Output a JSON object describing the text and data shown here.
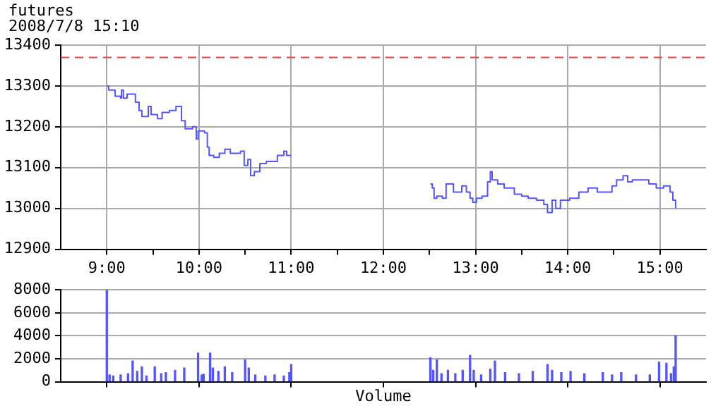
{
  "chart_data": [
    {
      "type": "step",
      "title": "futures",
      "subtitle": "2008/7/8 15:10",
      "xlim": [
        8.5,
        15.5
      ],
      "xticks": [
        {
          "value": 9,
          "label": "9:00"
        },
        {
          "value": 9.5,
          "label": null
        },
        {
          "value": 10,
          "label": "10:00"
        },
        {
          "value": 10.5,
          "label": null
        },
        {
          "value": 11,
          "label": "11:00"
        },
        {
          "value": 11.5,
          "label": null
        },
        {
          "value": 12,
          "label": "12:00"
        },
        {
          "value": 12.5,
          "label": null
        },
        {
          "value": 13,
          "label": "13:00"
        },
        {
          "value": 13.5,
          "label": null
        },
        {
          "value": 14,
          "label": "14:00"
        },
        {
          "value": 14.5,
          "label": null
        },
        {
          "value": 15,
          "label": "15:00"
        }
      ],
      "ylim": [
        12900,
        13400
      ],
      "yticks": [
        12900,
        13000,
        13100,
        13200,
        13300,
        13400
      ],
      "grid": true,
      "legend": false,
      "ref_lines": [
        {
          "axis": "y",
          "value": 13370,
          "color": "#ee4444",
          "line_style": "dashed"
        }
      ],
      "series": [
        {
          "color": "#5555ff",
          "x": [
            9.0,
            9.02,
            9.09,
            9.15,
            9.16,
            9.18,
            9.22,
            9.31,
            9.35,
            9.38,
            9.45,
            9.48,
            9.55,
            9.6,
            9.68,
            9.75,
            9.81,
            9.85,
            9.93,
            9.97,
            9.99,
            10.06,
            10.09,
            10.11,
            10.16,
            10.22,
            10.28,
            10.34,
            10.45,
            10.49,
            10.53,
            10.56,
            10.6,
            10.66,
            10.73,
            10.85,
            10.92,
            10.95,
            11.0,
            12.0,
            12.51,
            12.53,
            12.55,
            12.58,
            12.64,
            12.68,
            12.75,
            12.76,
            12.85,
            12.9,
            12.94,
            12.97,
            13.01,
            13.07,
            13.13,
            13.16,
            13.18,
            13.24,
            13.31,
            13.42,
            13.5,
            13.57,
            13.66,
            13.74,
            13.78,
            13.83,
            13.87,
            13.92,
            14.02,
            14.12,
            14.22,
            14.32,
            14.4,
            14.48,
            14.53,
            14.6,
            14.65,
            14.7,
            14.78,
            14.88,
            14.96,
            15.04,
            15.11,
            15.14,
            15.17
          ],
          "values": [
            13300,
            13290,
            13275,
            13270,
            13290,
            13270,
            13280,
            13260,
            13240,
            13225,
            13250,
            13230,
            13220,
            13235,
            13240,
            13250,
            13215,
            13195,
            13200,
            13170,
            13190,
            13185,
            13150,
            13130,
            13125,
            13135,
            13145,
            13135,
            13140,
            13105,
            13120,
            13080,
            13090,
            13110,
            13115,
            13130,
            13140,
            13130,
            13130,
            null,
            13060,
            13050,
            13025,
            13030,
            13025,
            13060,
            13060,
            13040,
            13055,
            13040,
            13025,
            13015,
            13025,
            13030,
            13065,
            13090,
            13070,
            13060,
            13050,
            13035,
            13030,
            13025,
            13020,
            13010,
            12990,
            13020,
            13000,
            13020,
            13025,
            13040,
            13050,
            13040,
            13040,
            13055,
            13070,
            13080,
            13065,
            13070,
            13070,
            13060,
            13050,
            13055,
            13040,
            13020,
            13000
          ]
        }
      ]
    },
    {
      "type": "bar",
      "xlabel": "Volume",
      "tick_labels": "y",
      "xlim": [
        8.5,
        15.5
      ],
      "xticks": [
        {
          "value": 9,
          "label": null
        },
        {
          "value": 10,
          "label": null
        },
        {
          "value": 11,
          "label": null
        },
        {
          "value": 12,
          "label": null
        },
        {
          "value": 13,
          "label": null
        },
        {
          "value": 14,
          "label": null
        },
        {
          "value": 15,
          "label": null
        }
      ],
      "ylim": [
        0,
        8000
      ],
      "yticks": [
        0,
        2000,
        4000,
        6000,
        8000
      ],
      "grid": true,
      "legend": false,
      "series": [
        {
          "color": "#5555ff",
          "x": [
            9.0,
            9.03,
            9.07,
            9.15,
            9.23,
            9.28,
            9.33,
            9.38,
            9.43,
            9.52,
            9.59,
            9.64,
            9.74,
            9.84,
            9.99,
            10.03,
            10.05,
            10.12,
            10.15,
            10.21,
            10.28,
            10.36,
            10.5,
            10.54,
            10.61,
            10.72,
            10.82,
            10.92,
            10.98,
            11.0,
            12.51,
            12.54,
            12.58,
            12.63,
            12.7,
            12.78,
            12.86,
            12.94,
            12.98,
            13.06,
            13.16,
            13.21,
            13.32,
            13.47,
            13.62,
            13.78,
            13.83,
            13.93,
            14.03,
            14.18,
            14.38,
            14.48,
            14.58,
            14.74,
            14.89,
            14.99,
            15.07,
            15.12,
            15.15,
            15.17
          ],
          "values": [
            8000,
            600,
            500,
            600,
            700,
            1800,
            900,
            1300,
            500,
            1300,
            700,
            800,
            1000,
            1200,
            2500,
            600,
            650,
            2500,
            1200,
            900,
            1300,
            800,
            1900,
            1200,
            600,
            500,
            600,
            500,
            800,
            1500,
            2100,
            1000,
            1900,
            700,
            1000,
            700,
            1000,
            2300,
            1000,
            600,
            1100,
            1800,
            800,
            700,
            900,
            1500,
            1000,
            800,
            900,
            700,
            800,
            600,
            800,
            600,
            600,
            1700,
            1600,
            700,
            1300,
            4000
          ]
        }
      ]
    }
  ]
}
